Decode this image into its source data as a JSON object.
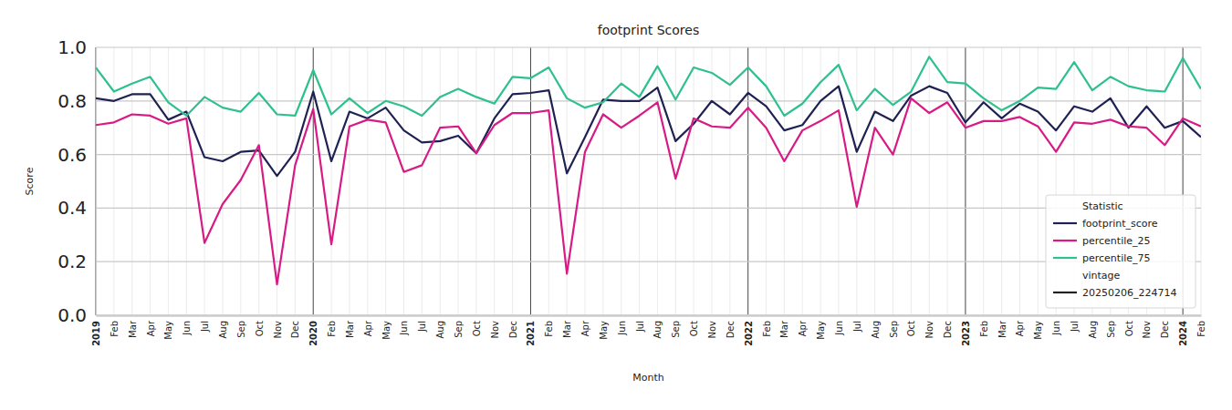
{
  "chart_data": {
    "type": "line",
    "title": "footprint Scores",
    "x_label": "Month",
    "y_label": "Score",
    "categories": [
      "2019",
      "Feb",
      "Mar",
      "Apr",
      "May",
      "Jun",
      "Jul",
      "Aug",
      "Sep",
      "Oct",
      "Nov",
      "Dec",
      "2020",
      "Feb",
      "Mar",
      "Apr",
      "May",
      "Jun",
      "Jul",
      "Aug",
      "Sep",
      "Oct",
      "Nov",
      "Dec",
      "2021",
      "Feb",
      "Mar",
      "Apr",
      "May",
      "Jun",
      "Jul",
      "Aug",
      "Sep",
      "Oct",
      "Nov",
      "Dec",
      "2022",
      "Feb",
      "Mar",
      "Apr",
      "May",
      "Jun",
      "Jul",
      "Aug",
      "Sep",
      "Oct",
      "Nov",
      "Dec",
      "2023",
      "Feb",
      "Mar",
      "Apr",
      "May",
      "Jun",
      "Jul",
      "Aug",
      "Sep",
      "Oct",
      "Nov",
      "Dec",
      "2024",
      "Feb"
    ],
    "series": [
      {
        "name": "footprint_score",
        "color": "#1f2152",
        "values": [
          0.81,
          0.8,
          0.825,
          0.825,
          0.73,
          0.76,
          0.59,
          0.575,
          0.61,
          0.615,
          0.52,
          0.61,
          0.835,
          0.575,
          0.76,
          0.735,
          0.775,
          0.69,
          0.645,
          0.65,
          0.67,
          0.605,
          0.735,
          0.825,
          0.83,
          0.84,
          0.53,
          0.665,
          0.805,
          0.8,
          0.8,
          0.85,
          0.65,
          0.715,
          0.8,
          0.75,
          0.83,
          0.78,
          0.69,
          0.71,
          0.8,
          0.855,
          0.61,
          0.76,
          0.725,
          0.82,
          0.855,
          0.83,
          0.72,
          0.795,
          0.735,
          0.79,
          0.76,
          0.69,
          0.78,
          0.76,
          0.81,
          0.7,
          0.78,
          0.7,
          0.725,
          0.665
        ]
      },
      {
        "name": "percentile_25",
        "color": "#d81b84",
        "values": [
          0.71,
          0.72,
          0.75,
          0.745,
          0.715,
          0.735,
          0.27,
          0.415,
          0.505,
          0.635,
          0.115,
          0.56,
          0.77,
          0.265,
          0.705,
          0.73,
          0.72,
          0.535,
          0.56,
          0.7,
          0.705,
          0.605,
          0.71,
          0.755,
          0.755,
          0.765,
          0.155,
          0.61,
          0.75,
          0.7,
          0.745,
          0.795,
          0.51,
          0.735,
          0.705,
          0.7,
          0.775,
          0.7,
          0.575,
          0.69,
          0.725,
          0.765,
          0.405,
          0.7,
          0.6,
          0.81,
          0.755,
          0.795,
          0.7,
          0.725,
          0.725,
          0.74,
          0.705,
          0.61,
          0.72,
          0.715,
          0.73,
          0.705,
          0.7,
          0.635,
          0.735,
          0.705
        ]
      },
      {
        "name": "percentile_75",
        "color": "#2ec08d",
        "values": [
          0.925,
          0.835,
          0.865,
          0.89,
          0.795,
          0.745,
          0.815,
          0.775,
          0.76,
          0.83,
          0.75,
          0.745,
          0.915,
          0.75,
          0.81,
          0.755,
          0.8,
          0.78,
          0.745,
          0.815,
          0.845,
          0.815,
          0.79,
          0.89,
          0.885,
          0.925,
          0.81,
          0.775,
          0.795,
          0.865,
          0.815,
          0.93,
          0.805,
          0.925,
          0.905,
          0.86,
          0.925,
          0.855,
          0.745,
          0.79,
          0.87,
          0.935,
          0.765,
          0.845,
          0.785,
          0.835,
          0.965,
          0.87,
          0.865,
          0.81,
          0.765,
          0.8,
          0.85,
          0.845,
          0.945,
          0.84,
          0.89,
          0.855,
          0.84,
          0.835,
          0.96,
          0.845
        ]
      }
    ],
    "ylim": [
      0,
      1
    ],
    "yticks": [
      {
        "value": 0,
        "label": "0.0"
      },
      {
        "value": 0.2,
        "label": "0.2"
      },
      {
        "value": 0.4,
        "label": "0.4"
      },
      {
        "value": 0.6,
        "label": "0.6"
      },
      {
        "value": 0.8,
        "label": "0.8"
      },
      {
        "value": 1,
        "label": "1.0"
      }
    ],
    "grid": true,
    "legend": "lower right",
    "legend_title": "Statistic",
    "legend_extra": {
      "title": "vintage",
      "label": "20250206_224714"
    }
  }
}
